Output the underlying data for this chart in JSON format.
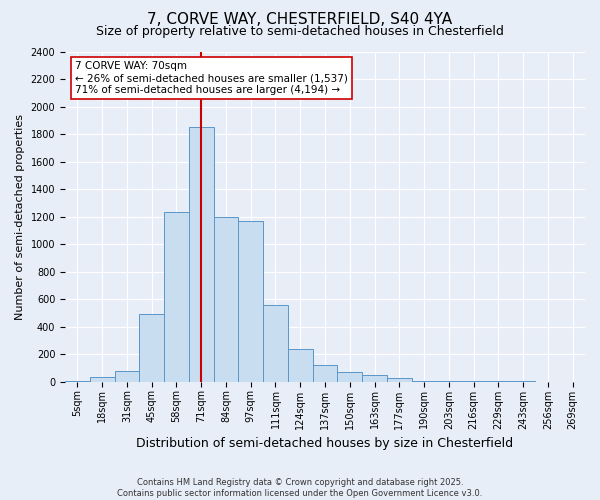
{
  "title": "7, CORVE WAY, CHESTERFIELD, S40 4YA",
  "subtitle": "Size of property relative to semi-detached houses in Chesterfield",
  "xlabel": "Distribution of semi-detached houses by size in Chesterfield",
  "ylabel": "Number of semi-detached properties",
  "footnote": "Contains HM Land Registry data © Crown copyright and database right 2025.\nContains public sector information licensed under the Open Government Licence v3.0.",
  "categories": [
    "5sqm",
    "18sqm",
    "31sqm",
    "45sqm",
    "58sqm",
    "71sqm",
    "84sqm",
    "97sqm",
    "111sqm",
    "124sqm",
    "137sqm",
    "150sqm",
    "163sqm",
    "177sqm",
    "190sqm",
    "203sqm",
    "216sqm",
    "229sqm",
    "243sqm",
    "256sqm",
    "269sqm"
  ],
  "values": [
    5,
    35,
    80,
    490,
    1230,
    1850,
    1200,
    1170,
    560,
    240,
    120,
    70,
    45,
    30,
    8,
    5,
    4,
    2,
    2,
    1,
    1
  ],
  "bar_color": "#c9ddf0",
  "bar_edge_color": "#5a96c8",
  "vline_x_index": 5,
  "vline_color": "#cc0000",
  "property_label": "7 CORVE WAY: 70sqm",
  "smaller_pct": "26% of semi-detached houses are smaller (1,537)",
  "larger_pct": "71% of semi-detached houses are larger (4,194)",
  "annotation_box_color": "#cc0000",
  "ylim": [
    0,
    2400
  ],
  "yticks": [
    0,
    200,
    400,
    600,
    800,
    1000,
    1200,
    1400,
    1600,
    1800,
    2000,
    2200,
    2400
  ],
  "background_color": "#e8eef8",
  "grid_color": "#ffffff",
  "title_fontsize": 11,
  "subtitle_fontsize": 9,
  "ylabel_fontsize": 8,
  "xlabel_fontsize": 9,
  "tick_fontsize": 7,
  "footnote_fontsize": 6,
  "annot_fontsize": 7.5
}
